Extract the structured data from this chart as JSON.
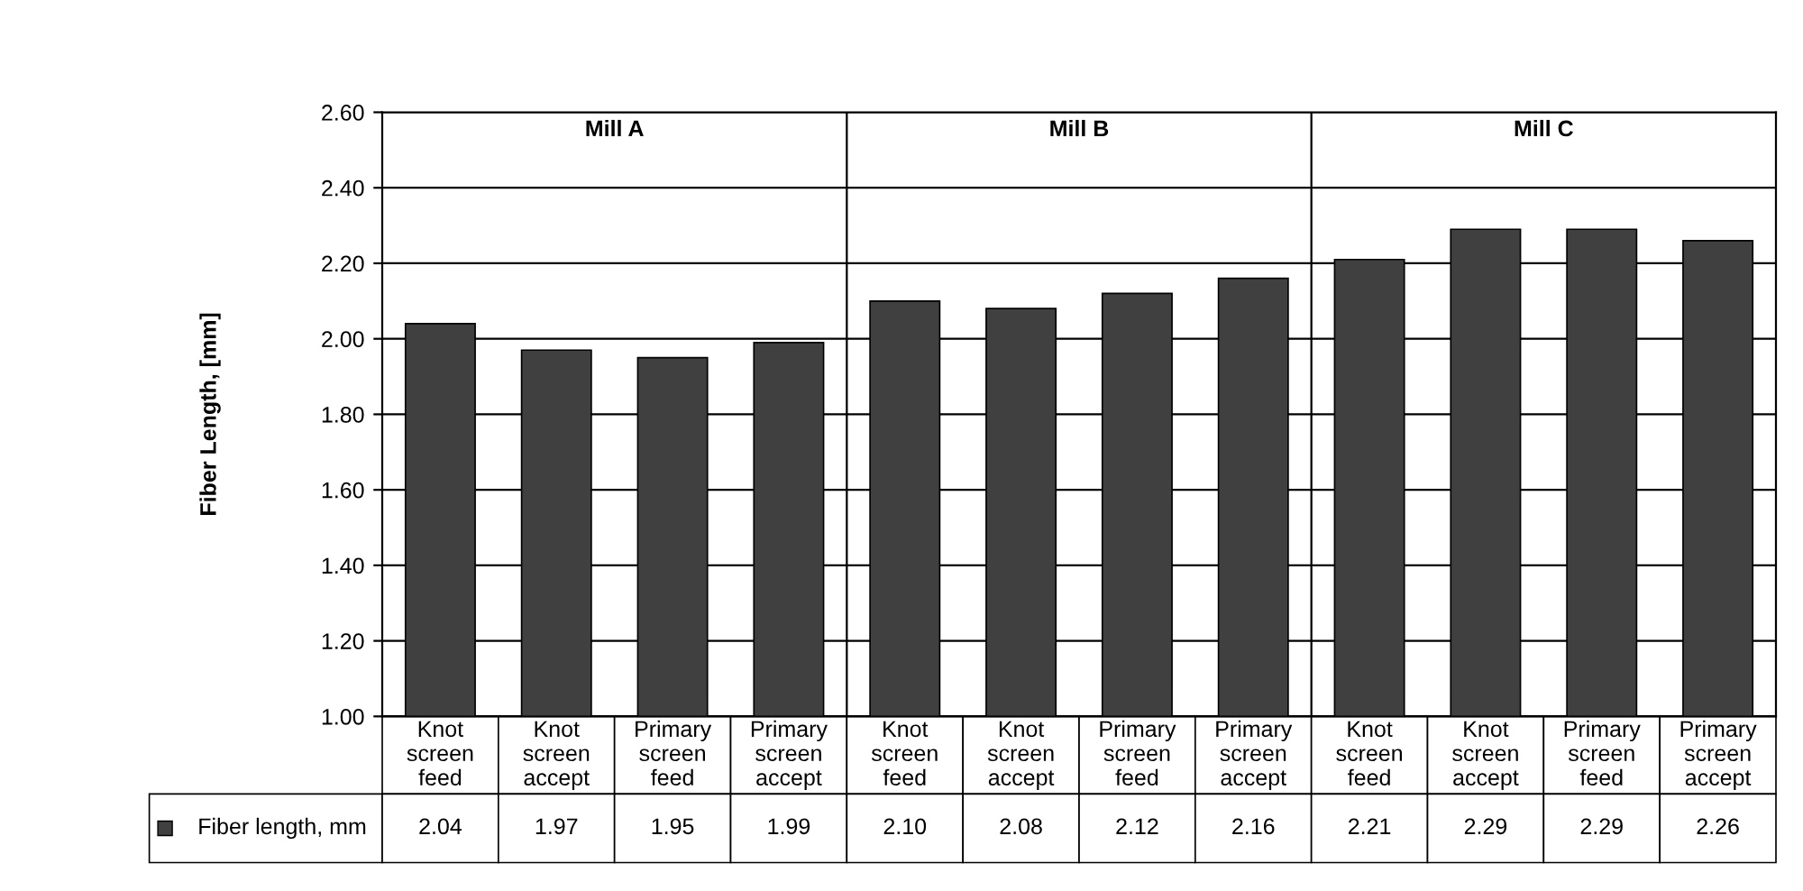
{
  "chart_data": {
    "type": "bar",
    "ylabel": "Fiber Length, [mm]",
    "categories": [
      "Knot screen feed",
      "Knot screen accept",
      "Primary screen feed",
      "Primary screen accept",
      "Knot screen feed",
      "Knot screen accept",
      "Primary screen feed",
      "Primary screen accept",
      "Knot screen feed",
      "Knot screen accept",
      "Primary screen feed",
      "Primary screen accept"
    ],
    "series": [
      {
        "name": "Fiber length, mm",
        "color": "#404040",
        "values": [
          2.04,
          1.97,
          1.95,
          1.99,
          2.1,
          2.08,
          2.12,
          2.16,
          2.21,
          2.29,
          2.29,
          2.26
        ],
        "value_labels": [
          "2.04",
          "1.97",
          "1.95",
          "1.99",
          "2.10",
          "2.08",
          "2.12",
          "2.16",
          "2.21",
          "2.29",
          "2.29",
          "2.26"
        ]
      }
    ],
    "annotations": [
      "Mill A",
      "Mill B",
      "Mill C"
    ],
    "ylim": [
      1.0,
      2.6
    ],
    "yticks": [
      {
        "value": 1.0,
        "label": "1.00"
      },
      {
        "value": 1.2,
        "label": "1.20"
      },
      {
        "value": 1.4,
        "label": "1.40"
      },
      {
        "value": 1.6,
        "label": "1.60"
      },
      {
        "value": 1.8,
        "label": "1.80"
      },
      {
        "value": 2.0,
        "label": "2.00"
      },
      {
        "value": 2.2,
        "label": "2.20"
      },
      {
        "value": 2.4,
        "label": "2.40"
      },
      {
        "value": 2.6,
        "label": "2.60"
      }
    ],
    "grid": "y"
  }
}
